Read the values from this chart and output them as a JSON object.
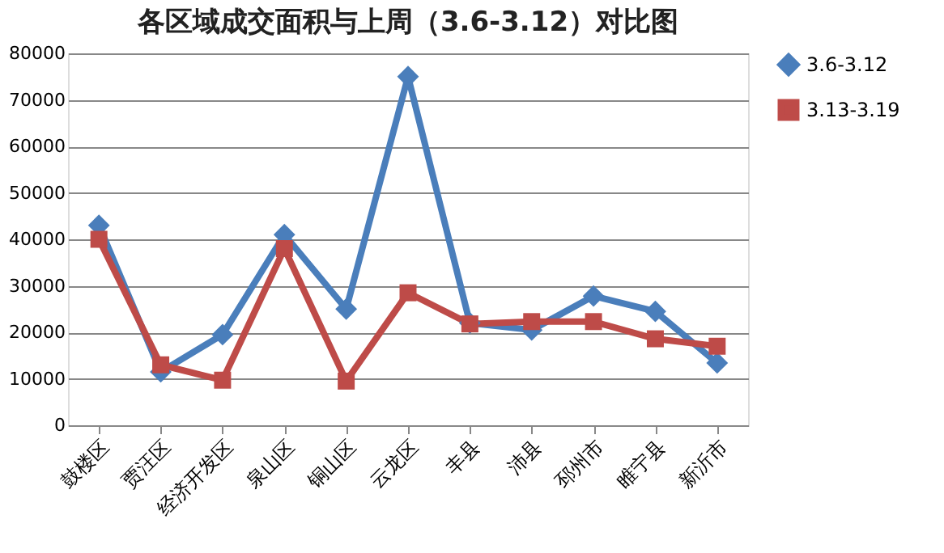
{
  "chart_data": {
    "type": "line",
    "title": "各区域成交面积与上周（3.6-3.12）对比图",
    "categories": [
      "鼓楼区",
      "贾汪区",
      "经济开发区",
      "泉山区",
      "铜山区",
      "云龙区",
      "丰县",
      "沛县",
      "邳州市",
      "睢宁县",
      "新沂市"
    ],
    "series": [
      {
        "name": "3.6-3.12",
        "color": "#4a7ebb",
        "marker": "diamond",
        "values": [
          43000,
          11500,
          19500,
          41000,
          25000,
          75000,
          22000,
          20500,
          27800,
          24500,
          13400
        ]
      },
      {
        "name": "3.13-3.19",
        "color": "#be4b48",
        "marker": "square",
        "values": [
          40000,
          13000,
          9700,
          38000,
          9500,
          28500,
          21800,
          22300,
          22300,
          18600,
          17000
        ]
      }
    ],
    "ylim": [
      0,
      80000
    ],
    "yticks": [
      0,
      10000,
      20000,
      30000,
      40000,
      50000,
      60000,
      70000,
      80000
    ],
    "grid": "y",
    "legend": "right",
    "line_style": "solid"
  }
}
